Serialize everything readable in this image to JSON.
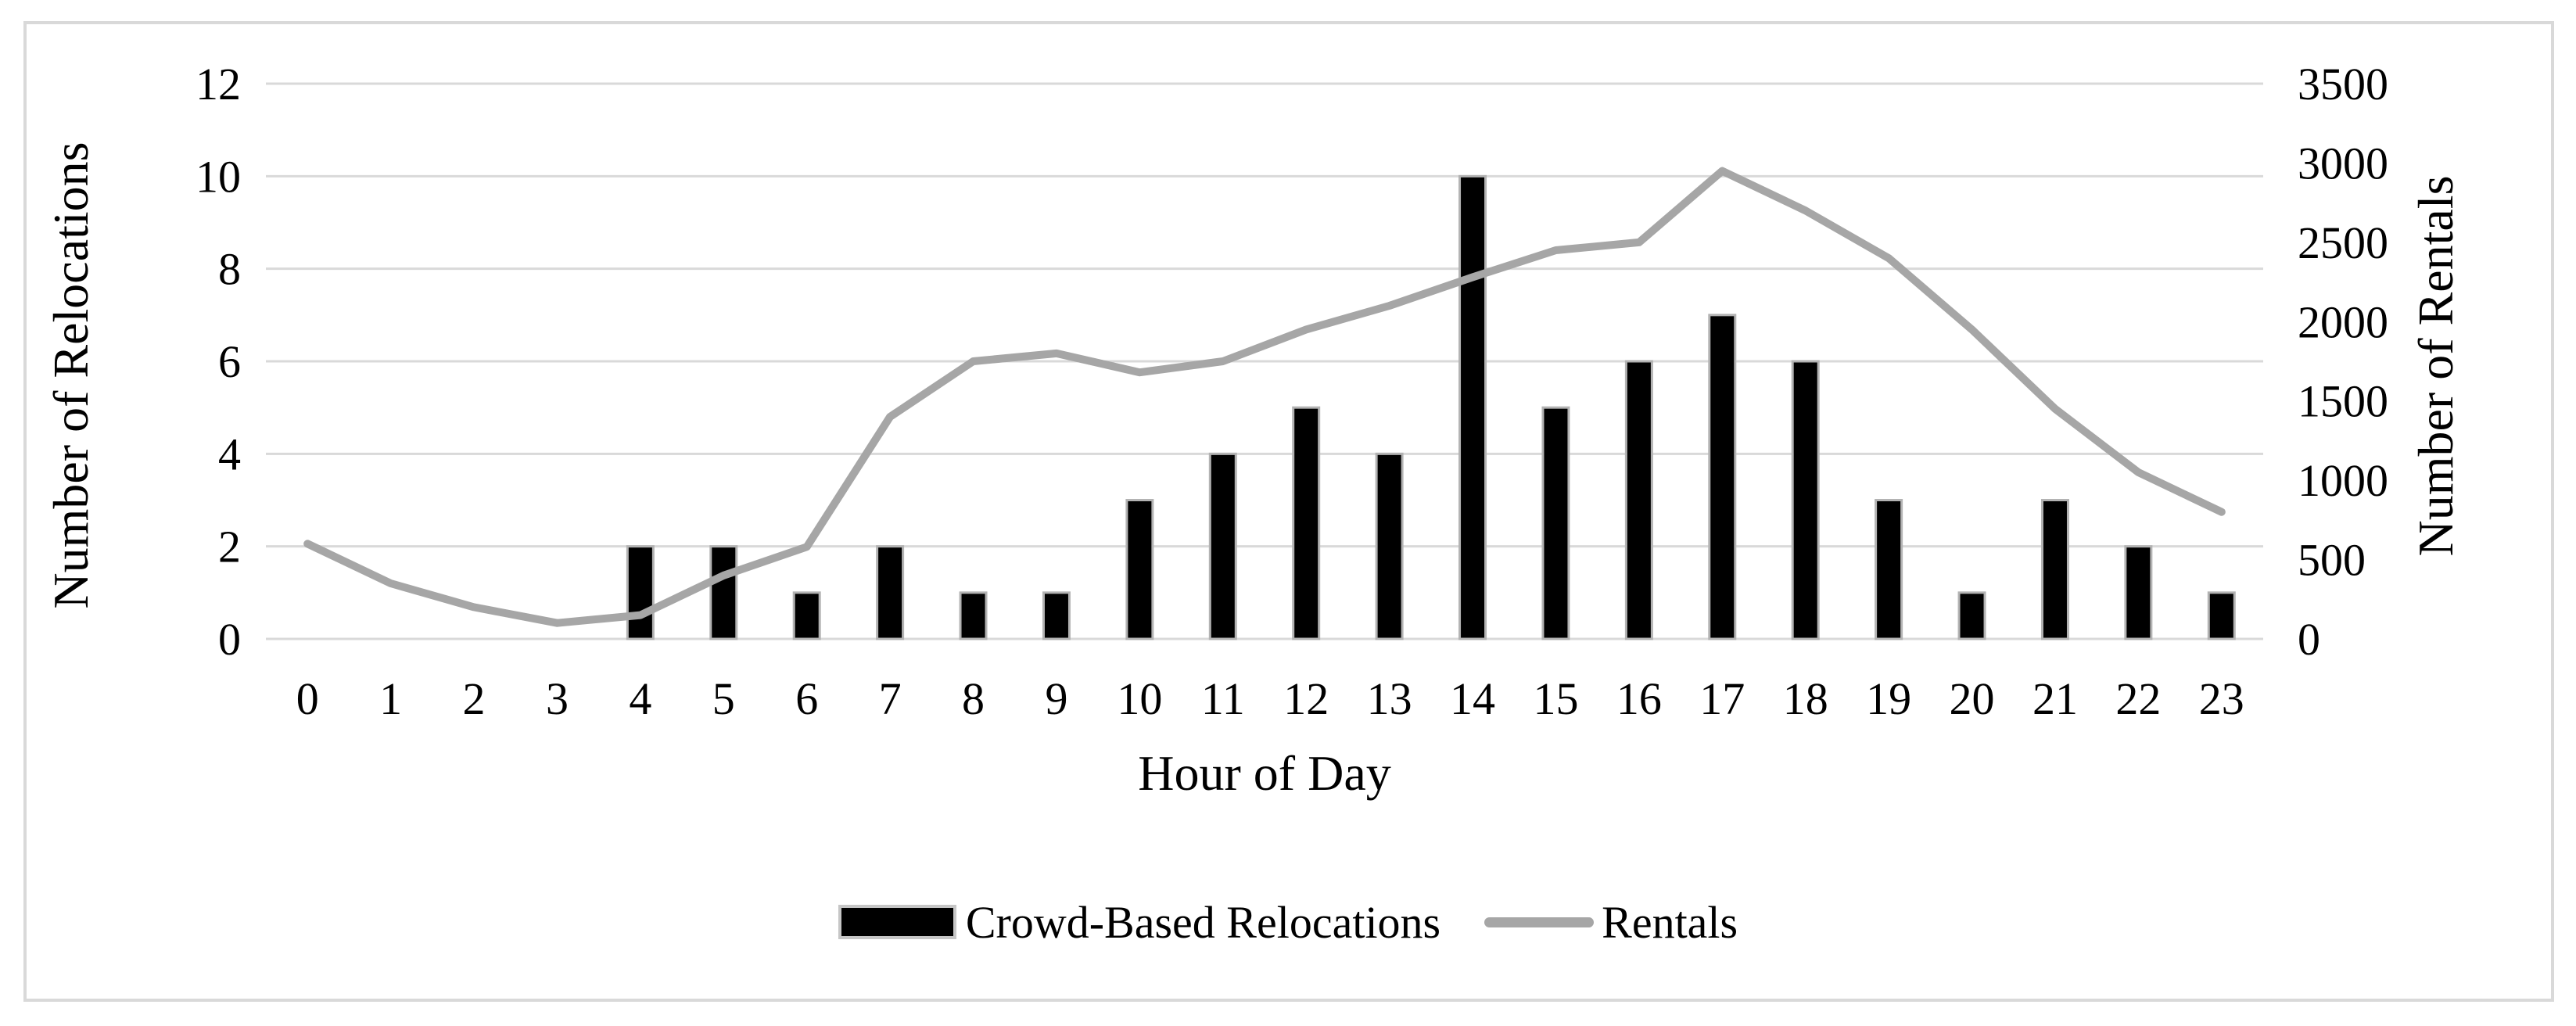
{
  "frame": {
    "border_color": "#d9d9d9",
    "background": "#ffffff"
  },
  "chart_data": {
    "type": "combo-bar-line",
    "title": "",
    "categories": [
      "0",
      "1",
      "2",
      "3",
      "4",
      "5",
      "6",
      "7",
      "8",
      "9",
      "10",
      "11",
      "12",
      "13",
      "14",
      "15",
      "16",
      "17",
      "18",
      "19",
      "20",
      "21",
      "22",
      "23"
    ],
    "series": [
      {
        "name": "Crowd-Based Relocations",
        "type": "bar",
        "axis": "left",
        "color": "#000000",
        "values": [
          0,
          0,
          0,
          0,
          2,
          2,
          1,
          2,
          1,
          1,
          3,
          4,
          5,
          4,
          10,
          5,
          6,
          7,
          6,
          3,
          1,
          3,
          2,
          1
        ]
      },
      {
        "name": "Rentals",
        "type": "line",
        "axis": "right",
        "color": "#a6a6a6",
        "values": [
          600,
          350,
          200,
          100,
          150,
          400,
          580,
          1400,
          1750,
          1800,
          1680,
          1750,
          1950,
          2100,
          2280,
          2450,
          2500,
          2950,
          2700,
          2400,
          1950,
          1450,
          1050,
          800
        ]
      }
    ],
    "xlabel": "Hour of Day",
    "ylabel_left": "Number of Relocations",
    "ylabel_right": "Number of Rentals",
    "axis_left": {
      "min": 0,
      "max": 12,
      "ticks": [
        0,
        2,
        4,
        6,
        8,
        10,
        12
      ]
    },
    "axis_right": {
      "min": 0,
      "max": 3500,
      "ticks": [
        0,
        500,
        1000,
        1500,
        2000,
        2500,
        3000,
        3500
      ]
    },
    "grid": true,
    "gridline_color": "#d9d9d9",
    "legend_position": "bottom"
  },
  "legend": {
    "items": [
      {
        "label": "Crowd-Based Relocations",
        "swatch": "bar",
        "color": "#000000"
      },
      {
        "label": "Rentals",
        "swatch": "line",
        "color": "#a6a6a6"
      }
    ]
  }
}
